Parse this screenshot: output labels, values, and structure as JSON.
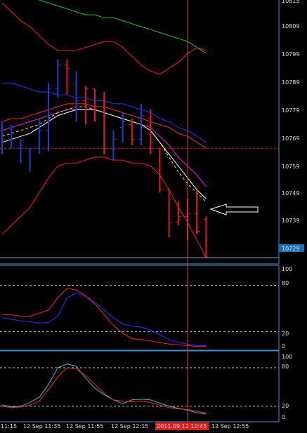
{
  "colors": {
    "background": "#000000",
    "frame": "#4a8fc7",
    "bull_bar": "#1f3bd6",
    "bear_bar": "#e01b1b",
    "upper_envelope": "#ff1a1a",
    "lower_envelope": "#ff1a1a",
    "long_ma": "#22c322",
    "blue_ma": "#2233ff",
    "red_ma": "#ff2a2a",
    "magenta_ma": "#e020e0",
    "yellow_ma": "#f0e040",
    "white_ma": "#ffffff",
    "cursor_line": "#d83a3a",
    "price_line": "#8fb6d8",
    "price_badge": "#1e6fb3",
    "time_badge": "#e01b1b",
    "dotted_level": "#c02020",
    "stoch_main": "#ff2020",
    "stoch_signal": "#2233ff",
    "rsi_main": "#ff2020",
    "rsi_signal": "#30c0c0",
    "arrow": "#ffffff"
  },
  "price_axis": {
    "labels": [
      "10815",
      "10809",
      "10799",
      "10789",
      "10779",
      "10769",
      "10759",
      "10749",
      "10739"
    ],
    "current_price": "10729",
    "ylim": [
      10727,
      10816
    ]
  },
  "indicator1_axis": {
    "labels": [
      "100",
      "80",
      "20",
      "0"
    ]
  },
  "indicator2_axis": {
    "labels": [
      "100",
      "80",
      "20",
      "0"
    ]
  },
  "time_axis": {
    "labels": [
      "11:15",
      "12 Sep 11:35",
      "12 Sep 11:55",
      "12 Sep 12:15",
      "12 Sep 12:55"
    ],
    "cursor_label": "2011.09.12 12:45"
  },
  "annotation": {
    "arrow_icon": "left-arrow-icon"
  },
  "chart_data": {
    "type": "bar",
    "title": "",
    "bars": [
      {
        "o": 10772,
        "h": 10775,
        "l": 10764,
        "c": 10769,
        "dir": "bull"
      },
      {
        "o": 10766,
        "h": 10774,
        "l": 10766,
        "c": 10773,
        "dir": "bull"
      },
      {
        "o": 10766,
        "h": 10769,
        "l": 10761,
        "c": 10767,
        "dir": "bull"
      },
      {
        "o": 10766,
        "h": 10766,
        "l": 10758,
        "c": 10766,
        "dir": "bull"
      },
      {
        "o": 10766,
        "h": 10776,
        "l": 10764,
        "c": 10772,
        "dir": "bull"
      },
      {
        "o": 10772,
        "h": 10788,
        "l": 10765,
        "c": 10786,
        "dir": "bull"
      },
      {
        "o": 10786,
        "h": 10796,
        "l": 10783,
        "c": 10794,
        "dir": "bull"
      },
      {
        "o": 10794,
        "h": 10796,
        "l": 10784,
        "c": 10793,
        "dir": "bear"
      },
      {
        "o": 10788,
        "h": 10792,
        "l": 10775,
        "c": 10782,
        "dir": "bull"
      },
      {
        "o": 10782,
        "h": 10787,
        "l": 10774,
        "c": 10786,
        "dir": "bear"
      },
      {
        "o": 10786,
        "h": 10786,
        "l": 10775,
        "c": 10780,
        "dir": "bear"
      },
      {
        "o": 10782,
        "h": 10785,
        "l": 10764,
        "c": 10766,
        "dir": "bear"
      },
      {
        "o": 10766,
        "h": 10772,
        "l": 10762,
        "c": 10769,
        "dir": "bull"
      },
      {
        "o": 10773,
        "h": 10778,
        "l": 10768,
        "c": 10775,
        "dir": "bull"
      },
      {
        "o": 10774,
        "h": 10776,
        "l": 10767,
        "c": 10769,
        "dir": "bear"
      },
      {
        "o": 10769,
        "h": 10781,
        "l": 10767,
        "c": 10777,
        "dir": "bull"
      },
      {
        "o": 10776,
        "h": 10779,
        "l": 10764,
        "c": 10768,
        "dir": "bear"
      },
      {
        "o": 10766,
        "h": 10766,
        "l": 10751,
        "c": 10752,
        "dir": "bear"
      },
      {
        "o": 10752,
        "h": 10752,
        "l": 10736,
        "c": 10741,
        "dir": "bear"
      },
      {
        "o": 10741,
        "h": 10748,
        "l": 10740,
        "c": 10743,
        "dir": "bear"
      },
      {
        "o": 10743,
        "h": 10749,
        "l": 10735,
        "c": 10744,
        "dir": "bear"
      },
      {
        "o": 10744,
        "h": 10752,
        "l": 10737,
        "c": 10738,
        "dir": "bear"
      },
      {
        "o": 10742,
        "h": 10743,
        "l": 10729,
        "c": 10729,
        "dir": "bear"
      }
    ],
    "series": {
      "upper_envelope": [
        10815,
        10812,
        10809,
        10807,
        10804,
        10801,
        10799,
        10799,
        10799,
        10800,
        10801,
        10802,
        10802,
        10800,
        10797,
        10794,
        10792,
        10791,
        10793,
        10795,
        10798,
        10800,
        10799
      ],
      "lower_envelope": [
        10737,
        10740,
        10743,
        10746,
        10751,
        10756,
        10760,
        10761,
        10761,
        10762,
        10763,
        10763,
        10762,
        10762,
        10761,
        10761,
        10760,
        10757,
        10752,
        10746,
        10741,
        10735,
        10729
      ],
      "long_ma": [
        10822,
        10821,
        10820,
        10818,
        10816,
        10815,
        10814,
        10813,
        10812,
        10811,
        10811,
        10810,
        10810,
        10809,
        10808,
        10807,
        10806,
        10805,
        10804,
        10803,
        10802,
        10800,
        10798
      ],
      "blue_ma": [
        10788,
        10788,
        10787,
        10786,
        10785,
        10785,
        10784,
        10784,
        10783,
        10783,
        10782,
        10782,
        10781,
        10781,
        10780,
        10779,
        10778,
        10776,
        10775,
        10773,
        10772,
        10770,
        10768
      ],
      "red_ma": [
        10775,
        10776,
        10776,
        10777,
        10778,
        10779,
        10780,
        10781,
        10781,
        10781,
        10780,
        10780,
        10779,
        10778,
        10777,
        10776,
        10775,
        10774,
        10773,
        10771,
        10770,
        10768,
        10766
      ],
      "magenta_ma": [
        10772,
        10773,
        10774,
        10775,
        10776,
        10777,
        10778,
        10779,
        10779,
        10779,
        10779,
        10778,
        10777,
        10776,
        10775,
        10774,
        10773,
        10770,
        10767,
        10763,
        10760,
        10757,
        10753
      ],
      "yellow_ma": [
        10770,
        10771,
        10772,
        10773,
        10774,
        10776,
        10778,
        10779,
        10780,
        10780,
        10779,
        10778,
        10777,
        10776,
        10775,
        10774,
        10772,
        10768,
        10763,
        10758,
        10754,
        10751,
        10748
      ],
      "white_ma": [
        10768,
        10769,
        10770,
        10771,
        10773,
        10775,
        10777,
        10778,
        10779,
        10779,
        10779,
        10778,
        10777,
        10776,
        10775,
        10774,
        10772,
        10768,
        10764,
        10760,
        10756,
        10752,
        10749
      ],
      "dotted_level": 10766,
      "stoch_main": [
        42,
        42,
        40,
        40,
        44,
        48,
        64,
        76,
        74,
        66,
        56,
        42,
        28,
        18,
        11,
        10,
        8,
        6,
        4,
        3,
        2,
        1,
        1
      ],
      "stoch_signal": [
        38,
        36,
        34,
        33,
        31,
        32,
        40,
        64,
        70,
        66,
        58,
        48,
        38,
        30,
        27,
        26,
        22,
        16,
        10,
        6,
        4,
        2,
        2
      ],
      "rsi_main": [
        20,
        18,
        19,
        22,
        28,
        46,
        66,
        80,
        78,
        68,
        54,
        40,
        30,
        28,
        27,
        28,
        26,
        22,
        18,
        16,
        15,
        12,
        10
      ],
      "rsi_signal": [
        22,
        19,
        20,
        26,
        34,
        54,
        80,
        86,
        82,
        64,
        48,
        38,
        30,
        24,
        30,
        31,
        30,
        25,
        20,
        17,
        14,
        10,
        8
      ]
    },
    "cursor_bar_index": 20,
    "levels_indicator": [
      80,
      20
    ],
    "ind_ylim": [
      -3,
      104
    ]
  }
}
